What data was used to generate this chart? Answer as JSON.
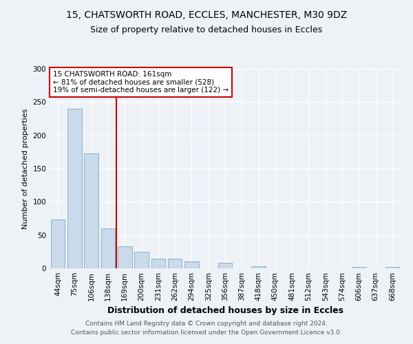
{
  "title": "15, CHATSWORTH ROAD, ECCLES, MANCHESTER, M30 9DZ",
  "subtitle": "Size of property relative to detached houses in Eccles",
  "xlabel": "Distribution of detached houses by size in Eccles",
  "ylabel": "Number of detached properties",
  "categories": [
    "44sqm",
    "75sqm",
    "106sqm",
    "138sqm",
    "169sqm",
    "200sqm",
    "231sqm",
    "262sqm",
    "294sqm",
    "325sqm",
    "356sqm",
    "387sqm",
    "418sqm",
    "450sqm",
    "481sqm",
    "512sqm",
    "543sqm",
    "574sqm",
    "606sqm",
    "637sqm",
    "668sqm"
  ],
  "values": [
    73,
    240,
    173,
    60,
    33,
    25,
    15,
    15,
    10,
    0,
    8,
    0,
    3,
    0,
    0,
    0,
    0,
    0,
    2,
    0,
    2
  ],
  "bar_color": "#c9daea",
  "bar_edge_color": "#8ab0cc",
  "vline_pos": 3.5,
  "vline_color": "#cc0000",
  "annotation_title": "15 CHATSWORTH ROAD: 161sqm",
  "annotation_line1": "← 81% of detached houses are smaller (528)",
  "annotation_line2": "19% of semi-detached houses are larger (122) →",
  "annotation_box_edgecolor": "#cc0000",
  "footnote1": "Contains HM Land Registry data © Crown copyright and database right 2024.",
  "footnote2": "Contains public sector information licensed under the Open Government Licence v3.0.",
  "ylim": [
    0,
    300
  ],
  "yticks": [
    0,
    50,
    100,
    150,
    200,
    250,
    300
  ],
  "bg_color": "#eef2f7",
  "grid_color": "#ffffff",
  "title_fontsize": 10,
  "subtitle_fontsize": 9,
  "ylabel_fontsize": 8,
  "xlabel_fontsize": 9,
  "tick_fontsize": 7.5,
  "footnote_fontsize": 6.5
}
